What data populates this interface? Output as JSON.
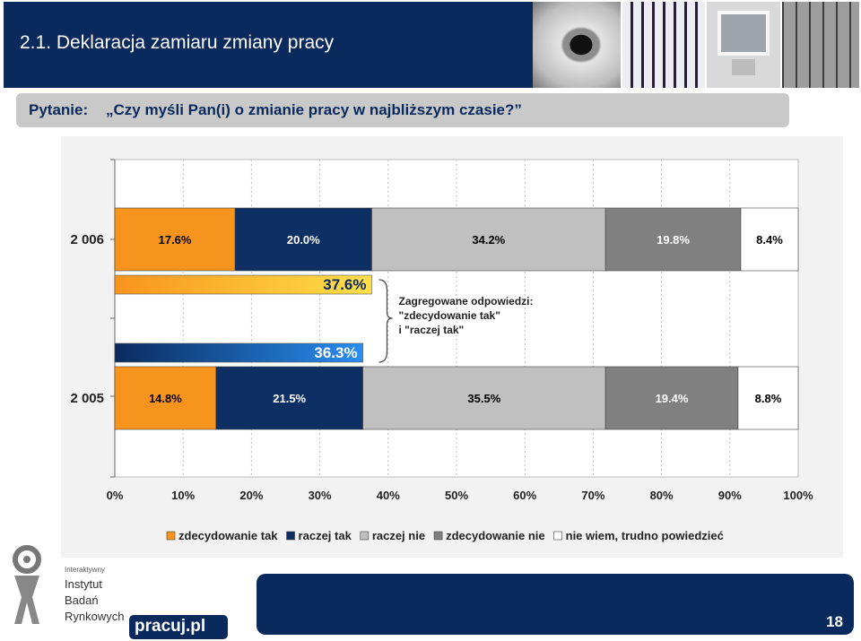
{
  "header": {
    "title": "2.1. Deklaracja zamiaru zmiany pracy"
  },
  "question": {
    "prefix": "Pytanie:",
    "text": "„Czy myśli Pan(i) o zmianie pracy w najbliższym czasie?”"
  },
  "chart_data": {
    "type": "bar",
    "orientation": "horizontal-stacked-100",
    "categories": [
      "2 006",
      "2 005"
    ],
    "series": [
      {
        "name": "zdecydowanie tak",
        "color": "#f7941d",
        "label_color": "#000000",
        "values": [
          17.6,
          14.8
        ],
        "labels": [
          "17.6%",
          "14.8%"
        ]
      },
      {
        "name": "raczej tak",
        "color": "#0d2f63",
        "label_color": "#ffffff",
        "values": [
          20.0,
          21.5
        ],
        "labels": [
          "20.0%",
          "21.5%"
        ]
      },
      {
        "name": "raczej nie",
        "color": "#c0c0c0",
        "label_color": "#000000",
        "values": [
          34.2,
          35.5
        ],
        "labels": [
          "34.2%",
          "35.5%"
        ]
      },
      {
        "name": "zdecydowanie nie",
        "color": "#808080",
        "label_color": "#ffffff",
        "values": [
          19.8,
          19.4
        ],
        "labels": [
          "19.8%",
          "19.4%"
        ]
      },
      {
        "name": "nie wiem, trudno powiedzieć",
        "color": "#ffffff",
        "label_color": "#000000",
        "values": [
          8.4,
          8.8
        ],
        "labels": [
          "8.4%",
          "8.8%"
        ]
      }
    ],
    "aggregated": [
      {
        "value": 37.6,
        "label": "37.6%",
        "style": "orange-gradient",
        "for_category": "2 006"
      },
      {
        "value": 36.3,
        "label": "36.3%",
        "style": "blue-gradient",
        "for_category": "2 005"
      }
    ],
    "annotation": [
      "Zagregowane odpowiedzi:",
      "\"zdecydowanie tak\"",
      "i \"raczej tak\""
    ],
    "xlim": [
      0,
      100
    ],
    "x_ticks": [
      "0%",
      "10%",
      "20%",
      "30%",
      "40%",
      "50%",
      "60%",
      "70%",
      "80%",
      "90%",
      "100%"
    ],
    "grid": true,
    "legend_position": "bottom"
  },
  "logos": {
    "institute_lines": [
      "Interaktywny",
      "Instytut",
      "Badań",
      "Rynkowych"
    ],
    "partner": "pracuj.pl"
  },
  "footer": {
    "page_number": "18"
  }
}
